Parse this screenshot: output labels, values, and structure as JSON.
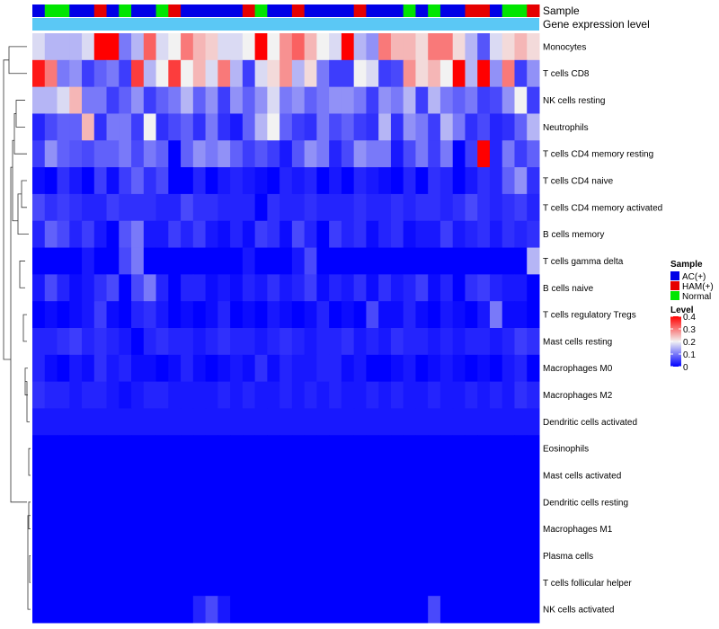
{
  "chart_data": {
    "type": "heatmap",
    "title": "",
    "annotations": {
      "sample_label": "Sample",
      "expression_label": "Gene expression level"
    },
    "rows": [
      "Monocytes",
      "T cells CD8",
      "NK cells resting",
      "Neutrophils",
      "T cells CD4 memory resting",
      "T cells CD4 naive",
      "T cells CD4 memory activated",
      "B cells memory",
      "T cells gamma delta",
      "B cells naive",
      "T cells regulatory  Tregs",
      "Mast cells resting",
      "Macrophages M0",
      "Macrophages M2",
      "Dendritic cells activated",
      "Eosinophils",
      "Mast cells activated",
      "Dendritic cells resting",
      "Macrophages M1",
      "Plasma cells",
      "T cells follicular helper",
      "NK cells activated"
    ],
    "sample_groups": [
      "AC",
      "Normal",
      "Normal",
      "AC",
      "AC",
      "HAM",
      "AC",
      "Normal",
      "AC",
      "AC",
      "Normal",
      "HAM",
      "AC",
      "AC",
      "AC",
      "AC",
      "AC",
      "HAM",
      "Normal",
      "AC",
      "AC",
      "HAM",
      "AC",
      "AC",
      "AC",
      "AC",
      "HAM",
      "AC",
      "AC",
      "AC",
      "Normal",
      "AC",
      "Normal",
      "AC",
      "AC",
      "HAM",
      "HAM",
      "AC",
      "Normal",
      "Normal",
      "HAM"
    ],
    "values": [
      [
        0.18,
        0.15,
        0.15,
        0.15,
        0.18,
        0.4,
        0.4,
        0.1,
        0.15,
        0.32,
        0.18,
        0.2,
        0.3,
        0.25,
        0.23,
        0.18,
        0.18,
        0.2,
        0.4,
        0.2,
        0.28,
        0.32,
        0.25,
        0.2,
        0.18,
        0.4,
        0.15,
        0.12,
        0.3,
        0.25,
        0.25,
        0.22,
        0.3,
        0.3,
        0.22,
        0.15,
        0.07,
        0.18,
        0.22,
        0.25,
        0.22
      ],
      [
        0.38,
        0.3,
        0.1,
        0.12,
        0.05,
        0.08,
        0.1,
        0.05,
        0.35,
        0.15,
        0.2,
        0.35,
        0.2,
        0.25,
        0.18,
        0.3,
        0.15,
        0.05,
        0.18,
        0.22,
        0.28,
        0.15,
        0.22,
        0.1,
        0.05,
        0.05,
        0.2,
        0.18,
        0.05,
        0.06,
        0.28,
        0.22,
        0.25,
        0.2,
        0.4,
        0.15,
        0.4,
        0.12,
        0.3,
        0.05,
        0.12
      ],
      [
        0.15,
        0.15,
        0.18,
        0.25,
        0.1,
        0.1,
        0.05,
        0.08,
        0.12,
        0.05,
        0.08,
        0.1,
        0.15,
        0.08,
        0.12,
        0.05,
        0.12,
        0.08,
        0.12,
        0.18,
        0.1,
        0.12,
        0.08,
        0.1,
        0.12,
        0.12,
        0.1,
        0.05,
        0.12,
        0.1,
        0.15,
        0.05,
        0.15,
        0.1,
        0.08,
        0.1,
        0.05,
        0.06,
        0.12,
        0.2,
        0.05
      ],
      [
        0.03,
        0.06,
        0.08,
        0.08,
        0.25,
        0.04,
        0.1,
        0.1,
        0.05,
        0.2,
        0.04,
        0.06,
        0.08,
        0.04,
        0.1,
        0.04,
        0.02,
        0.08,
        0.15,
        0.2,
        0.08,
        0.05,
        0.04,
        0.1,
        0.06,
        0.08,
        0.05,
        0.04,
        0.15,
        0.04,
        0.12,
        0.1,
        0.05,
        0.15,
        0.1,
        0.04,
        0.06,
        0.03,
        0.04,
        0.08,
        0.15
      ],
      [
        0.05,
        0.12,
        0.08,
        0.07,
        0.06,
        0.08,
        0.08,
        0.1,
        0.06,
        0.1,
        0.08,
        0.0,
        0.08,
        0.12,
        0.1,
        0.12,
        0.08,
        0.05,
        0.07,
        0.05,
        0.02,
        0.07,
        0.12,
        0.1,
        0.03,
        0.06,
        0.12,
        0.1,
        0.1,
        0.02,
        0.06,
        0.1,
        0.05,
        0.1,
        0.0,
        0.05,
        0.4,
        0.03,
        0.1,
        0.05,
        0.08
      ],
      [
        0.01,
        0.0,
        0.04,
        0.02,
        0.0,
        0.05,
        0.01,
        0.05,
        0.08,
        0.04,
        0.06,
        0.0,
        0.0,
        0.03,
        0.0,
        0.02,
        0.03,
        0.02,
        0.01,
        0.0,
        0.03,
        0.02,
        0.03,
        0.0,
        0.02,
        0.0,
        0.03,
        0.02,
        0.01,
        0.0,
        0.03,
        0.0,
        0.04,
        0.03,
        0.0,
        0.02,
        0.04,
        0.03,
        0.08,
        0.12,
        0.04
      ],
      [
        0.06,
        0.04,
        0.05,
        0.04,
        0.03,
        0.03,
        0.05,
        0.04,
        0.04,
        0.04,
        0.03,
        0.03,
        0.06,
        0.04,
        0.04,
        0.03,
        0.03,
        0.03,
        0.0,
        0.04,
        0.03,
        0.03,
        0.04,
        0.03,
        0.03,
        0.03,
        0.04,
        0.03,
        0.03,
        0.04,
        0.03,
        0.04,
        0.04,
        0.03,
        0.04,
        0.06,
        0.04,
        0.03,
        0.04,
        0.05,
        0.03
      ],
      [
        0.03,
        0.08,
        0.06,
        0.03,
        0.05,
        0.02,
        0.0,
        0.07,
        0.1,
        0.02,
        0.02,
        0.05,
        0.03,
        0.05,
        0.02,
        0.01,
        0.03,
        0.01,
        0.05,
        0.04,
        0.01,
        0.06,
        0.03,
        0.0,
        0.05,
        0.03,
        0.04,
        0.01,
        0.03,
        0.04,
        0.01,
        0.02,
        0.02,
        0.05,
        0.02,
        0.03,
        0.04,
        0.02,
        0.04,
        0.03,
        0.04
      ],
      [
        0.0,
        0.0,
        0.0,
        0.0,
        0.02,
        0.0,
        0.0,
        0.06,
        0.1,
        0.0,
        0.0,
        0.0,
        0.0,
        0.0,
        0.0,
        0.0,
        0.0,
        0.02,
        0.0,
        0.0,
        0.0,
        0.02,
        0.06,
        0.0,
        0.0,
        0.0,
        0.0,
        0.0,
        0.0,
        0.0,
        0.0,
        0.0,
        0.0,
        0.0,
        0.0,
        0.0,
        0.0,
        0.0,
        0.0,
        0.0,
        0.15
      ],
      [
        0.02,
        0.06,
        0.03,
        0.01,
        0.02,
        0.04,
        0.06,
        0.0,
        0.06,
        0.1,
        0.03,
        0.0,
        0.03,
        0.03,
        0.01,
        0.02,
        0.01,
        0.03,
        0.02,
        0.04,
        0.02,
        0.03,
        0.05,
        0.01,
        0.03,
        0.02,
        0.04,
        0.01,
        0.04,
        0.02,
        0.03,
        0.05,
        0.01,
        0.03,
        0.0,
        0.04,
        0.05,
        0.03,
        0.02,
        0.02,
        0.0
      ],
      [
        0.0,
        0.01,
        0.0,
        0.01,
        0.02,
        0.05,
        0.01,
        0.0,
        0.03,
        0.04,
        0.02,
        0.0,
        0.01,
        0.0,
        0.01,
        0.03,
        0.0,
        0.01,
        0.0,
        0.02,
        0.01,
        0.0,
        0.01,
        0.03,
        0.0,
        0.01,
        0.0,
        0.06,
        0.01,
        0.01,
        0.03,
        0.01,
        0.0,
        0.02,
        0.01,
        0.0,
        0.02,
        0.1,
        0.01,
        0.01,
        0.0
      ],
      [
        0.03,
        0.03,
        0.04,
        0.05,
        0.03,
        0.04,
        0.03,
        0.02,
        0.0,
        0.03,
        0.04,
        0.03,
        0.03,
        0.02,
        0.03,
        0.04,
        0.03,
        0.03,
        0.02,
        0.03,
        0.04,
        0.03,
        0.02,
        0.03,
        0.03,
        0.04,
        0.02,
        0.03,
        0.02,
        0.04,
        0.03,
        0.03,
        0.02,
        0.03,
        0.02,
        0.03,
        0.03,
        0.02,
        0.03,
        0.05,
        0.04
      ],
      [
        0.03,
        0.01,
        0.0,
        0.02,
        0.01,
        0.04,
        0.02,
        0.03,
        0.01,
        0.01,
        0.0,
        0.01,
        0.03,
        0.01,
        0.0,
        0.01,
        0.02,
        0.01,
        0.04,
        0.01,
        0.03,
        0.02,
        0.02,
        0.03,
        0.03,
        0.01,
        0.02,
        0.0,
        0.0,
        0.01,
        0.02,
        0.0,
        0.01,
        0.02,
        0.01,
        0.0,
        0.01,
        0.0,
        0.02,
        0.03,
        0.0
      ],
      [
        0.04,
        0.03,
        0.03,
        0.02,
        0.03,
        0.03,
        0.02,
        0.01,
        0.02,
        0.03,
        0.03,
        0.02,
        0.02,
        0.02,
        0.02,
        0.03,
        0.02,
        0.03,
        0.02,
        0.02,
        0.03,
        0.02,
        0.03,
        0.02,
        0.03,
        0.02,
        0.02,
        0.03,
        0.02,
        0.03,
        0.02,
        0.02,
        0.03,
        0.02,
        0.02,
        0.03,
        0.02,
        0.03,
        0.02,
        0.04,
        0.03
      ],
      [
        0.02,
        0.02,
        0.02,
        0.02,
        0.02,
        0.02,
        0.02,
        0.02,
        0.02,
        0.02,
        0.02,
        0.02,
        0.02,
        0.02,
        0.02,
        0.02,
        0.02,
        0.02,
        0.02,
        0.02,
        0.02,
        0.02,
        0.02,
        0.02,
        0.02,
        0.02,
        0.02,
        0.02,
        0.02,
        0.02,
        0.02,
        0.02,
        0.02,
        0.02,
        0.02,
        0.02,
        0.02,
        0.02,
        0.02,
        0.02,
        0.02
      ],
      [
        0.0,
        0.0,
        0.0,
        0.0,
        0.0,
        0.0,
        0.0,
        0.0,
        0.0,
        0.0,
        0.0,
        0.0,
        0.0,
        0.0,
        0.0,
        0.0,
        0.0,
        0.0,
        0.0,
        0.0,
        0.0,
        0.0,
        0.0,
        0.0,
        0.0,
        0.0,
        0.0,
        0.0,
        0.0,
        0.0,
        0.0,
        0.0,
        0.0,
        0.0,
        0.0,
        0.0,
        0.0,
        0.0,
        0.0,
        0.0,
        0.0
      ],
      [
        0.0,
        0.0,
        0.0,
        0.0,
        0.0,
        0.0,
        0.0,
        0.0,
        0.0,
        0.0,
        0.0,
        0.0,
        0.0,
        0.0,
        0.0,
        0.0,
        0.0,
        0.0,
        0.0,
        0.0,
        0.0,
        0.0,
        0.0,
        0.0,
        0.0,
        0.0,
        0.0,
        0.0,
        0.0,
        0.0,
        0.0,
        0.0,
        0.0,
        0.0,
        0.0,
        0.0,
        0.0,
        0.0,
        0.0,
        0.0,
        0.0
      ],
      [
        0.0,
        0.0,
        0.0,
        0.0,
        0.0,
        0.0,
        0.0,
        0.0,
        0.0,
        0.0,
        0.0,
        0.0,
        0.0,
        0.0,
        0.0,
        0.0,
        0.0,
        0.0,
        0.0,
        0.0,
        0.0,
        0.0,
        0.0,
        0.0,
        0.0,
        0.0,
        0.0,
        0.0,
        0.0,
        0.0,
        0.0,
        0.0,
        0.0,
        0.0,
        0.0,
        0.0,
        0.0,
        0.0,
        0.0,
        0.0,
        0.0
      ],
      [
        0.0,
        0.0,
        0.0,
        0.0,
        0.0,
        0.0,
        0.0,
        0.0,
        0.0,
        0.0,
        0.0,
        0.0,
        0.0,
        0.0,
        0.0,
        0.0,
        0.0,
        0.0,
        0.0,
        0.0,
        0.0,
        0.0,
        0.0,
        0.0,
        0.0,
        0.0,
        0.0,
        0.0,
        0.0,
        0.0,
        0.0,
        0.0,
        0.0,
        0.0,
        0.0,
        0.0,
        0.0,
        0.0,
        0.0,
        0.0,
        0.0
      ],
      [
        0.0,
        0.0,
        0.0,
        0.0,
        0.0,
        0.0,
        0.0,
        0.0,
        0.0,
        0.0,
        0.0,
        0.0,
        0.0,
        0.0,
        0.0,
        0.0,
        0.0,
        0.0,
        0.0,
        0.0,
        0.0,
        0.0,
        0.0,
        0.0,
        0.0,
        0.0,
        0.0,
        0.0,
        0.0,
        0.0,
        0.0,
        0.0,
        0.0,
        0.0,
        0.0,
        0.0,
        0.0,
        0.0,
        0.0,
        0.0,
        0.0
      ],
      [
        0.0,
        0.0,
        0.0,
        0.0,
        0.0,
        0.0,
        0.0,
        0.0,
        0.0,
        0.0,
        0.0,
        0.0,
        0.0,
        0.0,
        0.0,
        0.0,
        0.0,
        0.0,
        0.0,
        0.0,
        0.0,
        0.0,
        0.0,
        0.0,
        0.0,
        0.0,
        0.0,
        0.0,
        0.0,
        0.0,
        0.0,
        0.0,
        0.0,
        0.0,
        0.0,
        0.0,
        0.0,
        0.0,
        0.0,
        0.0,
        0.0
      ],
      [
        0.0,
        0.0,
        0.0,
        0.0,
        0.0,
        0.0,
        0.0,
        0.0,
        0.0,
        0.0,
        0.0,
        0.0,
        0.0,
        0.03,
        0.06,
        0.02,
        0.0,
        0.0,
        0.0,
        0.0,
        0.0,
        0.0,
        0.0,
        0.0,
        0.0,
        0.0,
        0.0,
        0.0,
        0.0,
        0.0,
        0.0,
        0.0,
        0.06,
        0.0,
        0.0,
        0.0,
        0.0,
        0.0,
        0.0,
        0.0,
        0.0
      ]
    ],
    "color_scale": {
      "min": 0,
      "mid": 0.2,
      "max": 0.4,
      "low_color": "#0000FF",
      "mid_color": "#F2F2F2",
      "high_color": "#FF0000"
    },
    "legend_sample": {
      "title": "Sample",
      "items": [
        {
          "key": "AC",
          "label": "AC(+)",
          "color": "#0000E6"
        },
        {
          "key": "HAM",
          "label": "HAM(+)",
          "color": "#E60000"
        },
        {
          "key": "Normal",
          "label": "Normal",
          "color": "#00E600"
        }
      ]
    },
    "legend_level": {
      "title": "Level",
      "ticks": [
        0.4,
        0.3,
        0.2,
        0.1,
        0
      ],
      "tick_labels": [
        "0.4",
        "0.3",
        "0.2",
        "0.1",
        "0"
      ]
    },
    "expression_bar_color": "#5BC8F5",
    "dendrogram": "rows"
  }
}
